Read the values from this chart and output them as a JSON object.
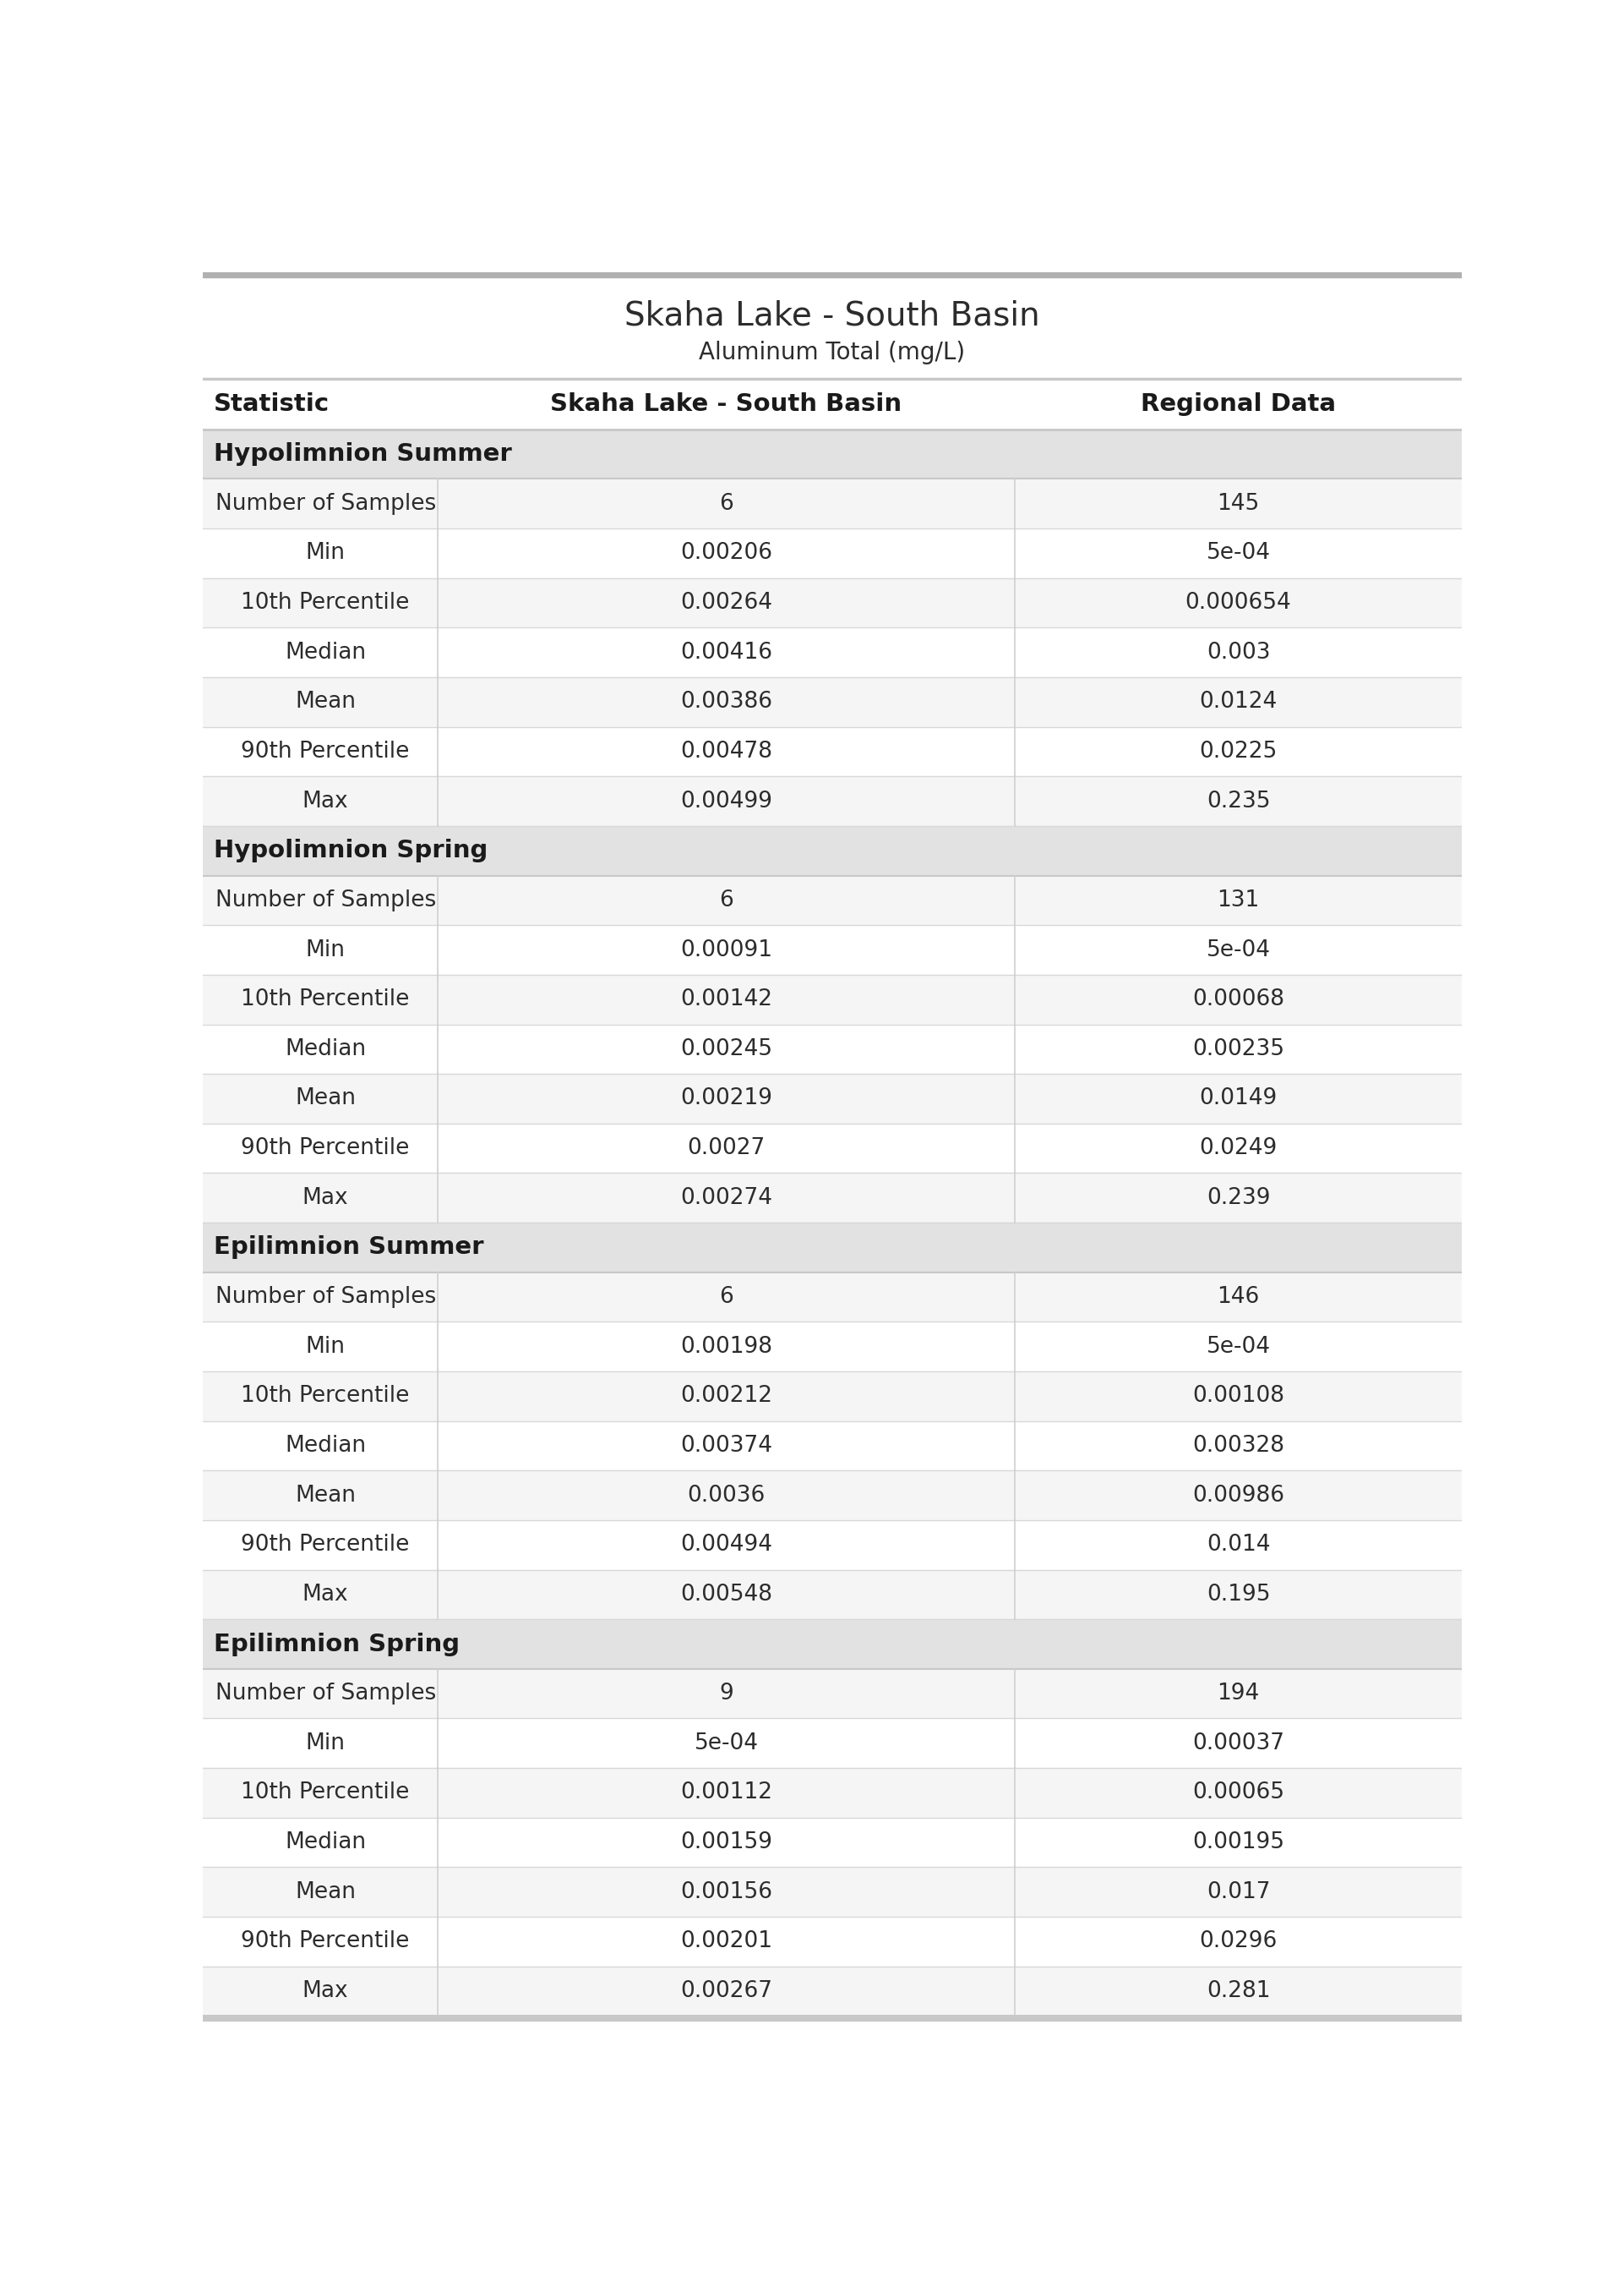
{
  "title": "Skaha Lake - South Basin",
  "subtitle": "Aluminum Total (mg/L)",
  "col_headers": [
    "Statistic",
    "Skaha Lake - South Basin",
    "Regional Data"
  ],
  "sections": [
    {
      "name": "Hypolimnion Summer",
      "rows": [
        [
          "Number of Samples",
          "6",
          "145"
        ],
        [
          "Min",
          "0.00206",
          "5e-04"
        ],
        [
          "10th Percentile",
          "0.00264",
          "0.000654"
        ],
        [
          "Median",
          "0.00416",
          "0.003"
        ],
        [
          "Mean",
          "0.00386",
          "0.0124"
        ],
        [
          "90th Percentile",
          "0.00478",
          "0.0225"
        ],
        [
          "Max",
          "0.00499",
          "0.235"
        ]
      ]
    },
    {
      "name": "Hypolimnion Spring",
      "rows": [
        [
          "Number of Samples",
          "6",
          "131"
        ],
        [
          "Min",
          "0.00091",
          "5e-04"
        ],
        [
          "10th Percentile",
          "0.00142",
          "0.00068"
        ],
        [
          "Median",
          "0.00245",
          "0.00235"
        ],
        [
          "Mean",
          "0.00219",
          "0.0149"
        ],
        [
          "90th Percentile",
          "0.0027",
          "0.0249"
        ],
        [
          "Max",
          "0.00274",
          "0.239"
        ]
      ]
    },
    {
      "name": "Epilimnion Summer",
      "rows": [
        [
          "Number of Samples",
          "6",
          "146"
        ],
        [
          "Min",
          "0.00198",
          "5e-04"
        ],
        [
          "10th Percentile",
          "0.00212",
          "0.00108"
        ],
        [
          "Median",
          "0.00374",
          "0.00328"
        ],
        [
          "Mean",
          "0.0036",
          "0.00986"
        ],
        [
          "90th Percentile",
          "0.00494",
          "0.014"
        ],
        [
          "Max",
          "0.00548",
          "0.195"
        ]
      ]
    },
    {
      "name": "Epilimnion Spring",
      "rows": [
        [
          "Number of Samples",
          "9",
          "194"
        ],
        [
          "Min",
          "5e-04",
          "0.00037"
        ],
        [
          "10th Percentile",
          "0.00112",
          "0.00065"
        ],
        [
          "Median",
          "0.00159",
          "0.00195"
        ],
        [
          "Mean",
          "0.00156",
          "0.017"
        ],
        [
          "90th Percentile",
          "0.00201",
          "0.0296"
        ],
        [
          "Max",
          "0.00267",
          "0.281"
        ]
      ]
    }
  ],
  "title_color": "#2c2c2c",
  "subtitle_color": "#2c2c2c",
  "header_text_color": "#1a1a1a",
  "section_bg_color": "#e2e2e2",
  "section_text_color": "#1a1a1a",
  "row_bg_even": "#f5f5f5",
  "row_bg_odd": "#ffffff",
  "cell_text_color": "#2c2c2c",
  "regional_text_color": "#2c2c2c",
  "top_bar_color": "#b0b0b0",
  "bottom_bar_color": "#c8c8c8",
  "header_line_color": "#c8c8c8",
  "row_line_color": "#d8d8d8",
  "col_divider_color": "#d0d0d0"
}
